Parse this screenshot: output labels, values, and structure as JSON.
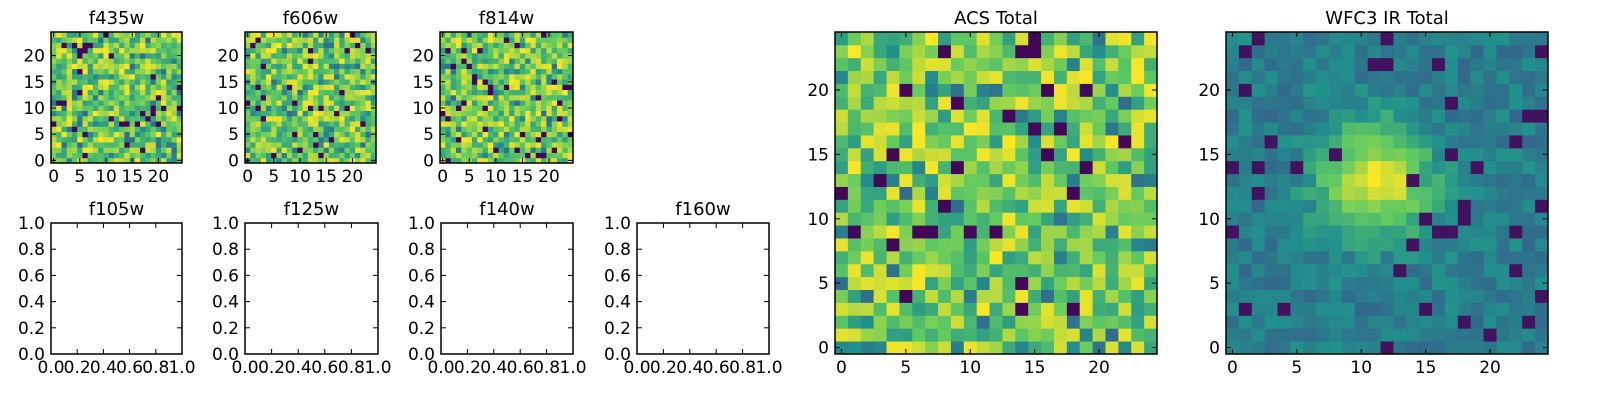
{
  "figure": {
    "panels": [
      {
        "id": "f435w",
        "title": "f435w",
        "kind": "image",
        "seed": 11,
        "style": "noise",
        "xticks": [
          0,
          5,
          10,
          15,
          20
        ],
        "yticks": [
          0,
          5,
          10,
          15,
          20
        ]
      },
      {
        "id": "f606w",
        "title": "f606w",
        "kind": "image",
        "seed": 23,
        "style": "noise",
        "xticks": [
          0,
          5,
          10,
          15,
          20
        ],
        "yticks": [
          0,
          5,
          10,
          15,
          20
        ]
      },
      {
        "id": "f814w",
        "title": "f814w",
        "kind": "image",
        "seed": 37,
        "style": "noise",
        "xticks": [
          0,
          5,
          10,
          15,
          20
        ],
        "yticks": [
          0,
          5,
          10,
          15,
          20
        ]
      },
      {
        "id": "f105w",
        "title": "f105w",
        "kind": "empty",
        "xticks": [
          "0.0",
          "0.2",
          "0.4",
          "0.6",
          "0.8",
          "1.0"
        ],
        "yticks": [
          "0.0",
          "0.2",
          "0.4",
          "0.6",
          "0.8",
          "1.0"
        ]
      },
      {
        "id": "f125w",
        "title": "f125w",
        "kind": "empty",
        "xticks": [
          "0.0",
          "0.2",
          "0.4",
          "0.6",
          "0.8",
          "1.0"
        ],
        "yticks": [
          "0.0",
          "0.2",
          "0.4",
          "0.6",
          "0.8",
          "1.0"
        ]
      },
      {
        "id": "f140w",
        "title": "f140w",
        "kind": "empty",
        "xticks": [
          "0.0",
          "0.2",
          "0.4",
          "0.6",
          "0.8",
          "1.0"
        ],
        "yticks": [
          "0.0",
          "0.2",
          "0.4",
          "0.6",
          "0.8",
          "1.0"
        ]
      },
      {
        "id": "f160w",
        "title": "f160w",
        "kind": "empty",
        "xticks": [
          "0.0",
          "0.2",
          "0.4",
          "0.6",
          "0.8",
          "1.0"
        ],
        "yticks": [
          "0.0",
          "0.2",
          "0.4",
          "0.6",
          "0.8",
          "1.0"
        ]
      },
      {
        "id": "acs_total",
        "title": "ACS Total",
        "kind": "image",
        "seed": 53,
        "style": "noise",
        "xticks": [
          0,
          5,
          10,
          15,
          20
        ],
        "yticks": [
          0,
          5,
          10,
          15,
          20
        ]
      },
      {
        "id": "wfc3_ir_total",
        "title": "WFC3 IR Total",
        "kind": "image",
        "seed": 71,
        "style": "blob",
        "xticks": [
          0,
          5,
          10,
          15,
          20
        ],
        "yticks": [
          0,
          5,
          10,
          15,
          20
        ]
      }
    ]
  },
  "chart_data": [
    {
      "type": "heatmap",
      "title": "f435w",
      "grid": [
        25,
        25
      ],
      "xlim": [
        -0.5,
        24.5
      ],
      "ylim": [
        -0.5,
        24.5
      ],
      "colormap": "viridis",
      "description_of_values": "noisy pixel intensities, mostly high values"
    },
    {
      "type": "heatmap",
      "title": "f606w",
      "grid": [
        25,
        25
      ],
      "xlim": [
        -0.5,
        24.5
      ],
      "ylim": [
        -0.5,
        24.5
      ],
      "colormap": "viridis"
    },
    {
      "type": "heatmap",
      "title": "f814w",
      "grid": [
        25,
        25
      ],
      "xlim": [
        -0.5,
        24.5
      ],
      "ylim": [
        -0.5,
        24.5
      ],
      "colormap": "viridis"
    },
    {
      "type": "empty",
      "title": "f105w",
      "xlim": [
        0.0,
        1.0
      ],
      "ylim": [
        0.0,
        1.0
      ]
    },
    {
      "type": "empty",
      "title": "f125w",
      "xlim": [
        0.0,
        1.0
      ],
      "ylim": [
        0.0,
        1.0
      ]
    },
    {
      "type": "empty",
      "title": "f140w",
      "xlim": [
        0.0,
        1.0
      ],
      "ylim": [
        0.0,
        1.0
      ]
    },
    {
      "type": "empty",
      "title": "f160w",
      "xlim": [
        0.0,
        1.0
      ],
      "ylim": [
        0.0,
        1.0
      ]
    },
    {
      "type": "heatmap",
      "title": "ACS Total",
      "grid": [
        25,
        25
      ],
      "xlim": [
        -0.5,
        24.5
      ],
      "ylim": [
        -0.5,
        24.5
      ],
      "colormap": "viridis"
    },
    {
      "type": "heatmap",
      "title": "WFC3 IR Total",
      "grid": [
        25,
        25
      ],
      "xlim": [
        -0.5,
        24.5
      ],
      "ylim": [
        -0.5,
        24.5
      ],
      "colormap": "viridis",
      "peak": {
        "x": 11,
        "y": 13
      }
    }
  ],
  "colors": {
    "viridis": [
      "#440154",
      "#3b528b",
      "#21918c",
      "#5ec962",
      "#fde725"
    ],
    "axis": "#000000",
    "background": "#ffffff"
  }
}
